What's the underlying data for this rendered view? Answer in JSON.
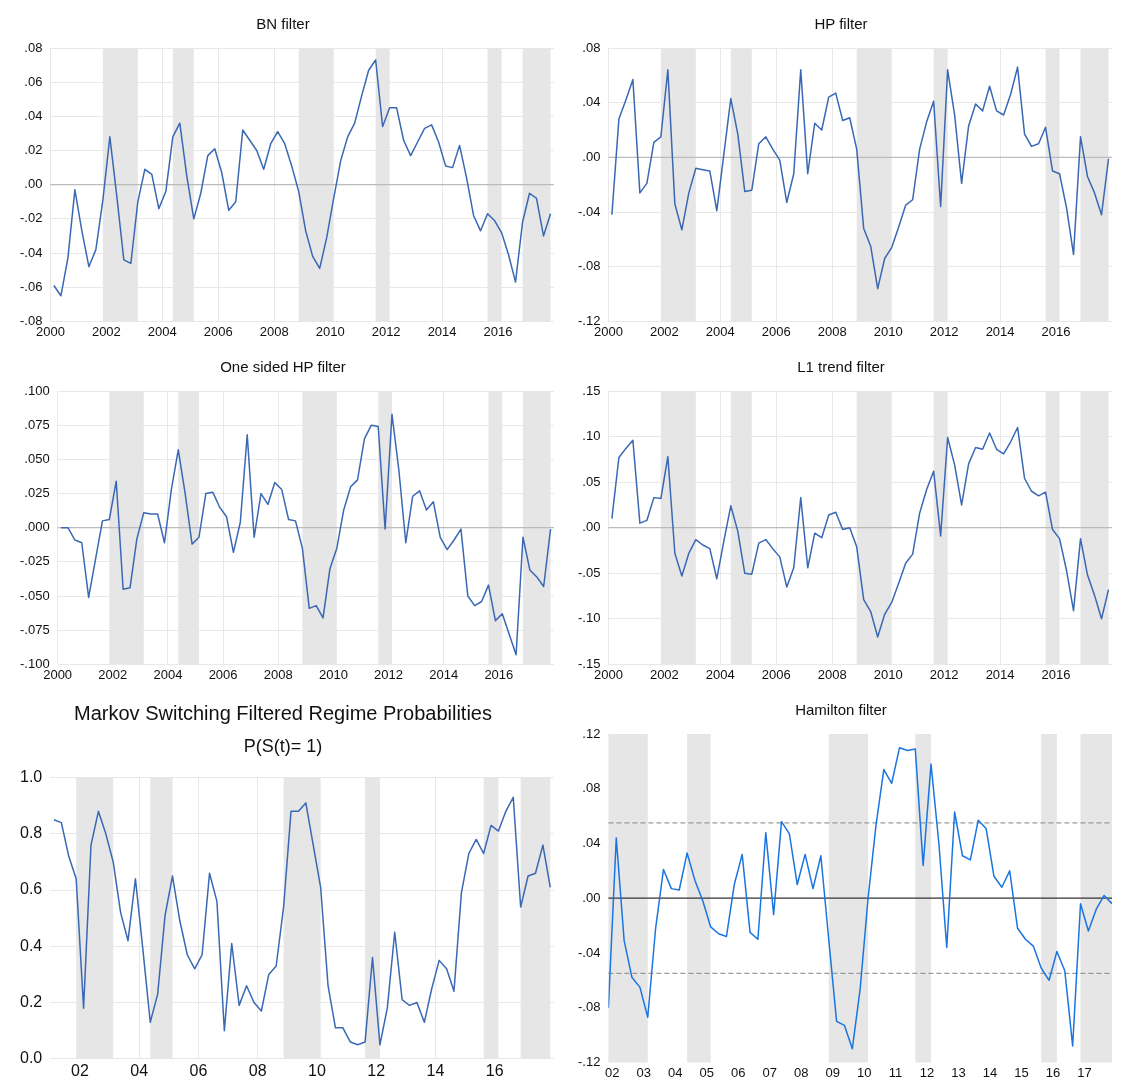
{
  "chart_data": [
    {
      "type": "line",
      "title": "BN filter",
      "x": [
        2000.125,
        2000.375,
        2000.625,
        2000.875,
        2001.125,
        2001.375,
        2001.625,
        2001.875,
        2002.125,
        2002.375,
        2002.625,
        2002.875,
        2003.125,
        2003.375,
        2003.625,
        2003.875,
        2004.125,
        2004.375,
        2004.625,
        2004.875,
        2005.125,
        2005.375,
        2005.625,
        2005.875,
        2006.125,
        2006.375,
        2006.625,
        2006.875,
        2007.125,
        2007.375,
        2007.625,
        2007.875,
        2008.125,
        2008.375,
        2008.625,
        2008.875,
        2009.125,
        2009.375,
        2009.625,
        2009.875,
        2010.125,
        2010.375,
        2010.625,
        2010.875,
        2011.125,
        2011.375,
        2011.625,
        2011.875,
        2012.125,
        2012.375,
        2012.625,
        2012.875,
        2013.125,
        2013.375,
        2013.625,
        2013.875,
        2014.125,
        2014.375,
        2014.625,
        2014.875,
        2015.125,
        2015.375,
        2015.625,
        2015.875,
        2016.125,
        2016.375,
        2016.625,
        2016.875,
        2017.125,
        2017.375,
        2017.625,
        2017.875
      ],
      "series": [
        {
          "color": "#3a68b4",
          "values": [
            -0.059,
            -0.065,
            -0.043,
            -0.003,
            -0.027,
            -0.048,
            -0.038,
            -0.009,
            0.028,
            -0.007,
            -0.044,
            -0.046,
            -0.01,
            0.009,
            0.006,
            -0.014,
            -0.004,
            0.028,
            0.036,
            0.005,
            -0.02,
            -0.005,
            0.017,
            0.021,
            0.007,
            -0.015,
            -0.01,
            0.032,
            0.026,
            0.02,
            0.009,
            0.024,
            0.031,
            0.024,
            0.011,
            -0.004,
            -0.027,
            -0.042,
            -0.049,
            -0.031,
            -0.008,
            0.014,
            0.028,
            0.036,
            0.052,
            0.067,
            0.073,
            0.034,
            0.045,
            0.045,
            0.026,
            0.017,
            0.025,
            0.033,
            0.035,
            0.025,
            0.011,
            0.01,
            0.023,
            0.004,
            -0.018,
            -0.027,
            -0.017,
            -0.021,
            -0.028,
            -0.041,
            -0.057,
            -0.022,
            -0.005,
            -0.008,
            -0.03,
            -0.017
          ]
        }
      ],
      "xlim": [
        2000,
        2018
      ],
      "xticks": [
        2000,
        2002,
        2004,
        2006,
        2008,
        2010,
        2012,
        2014,
        2016
      ],
      "ylim": [
        -0.08,
        0.08
      ],
      "yticks": [
        {
          "value": -0.08,
          "label": "-.08"
        },
        {
          "value": -0.06,
          "label": "-.06"
        },
        {
          "value": -0.04,
          "label": "-.04"
        },
        {
          "value": -0.02,
          "label": "-.02"
        },
        {
          "value": 0,
          "label": ".00"
        },
        {
          "value": 0.02,
          "label": ".02"
        },
        {
          "value": 0.04,
          "label": ".04"
        },
        {
          "value": 0.06,
          "label": ".06"
        },
        {
          "value": 0.08,
          "label": ".08"
        }
      ],
      "grid": true,
      "bands": [
        {
          "axis": "x",
          "from": 2001.875,
          "to": 2003.125
        },
        {
          "axis": "x",
          "from": 2004.375,
          "to": 2005.125
        },
        {
          "axis": "x",
          "from": 2008.875,
          "to": 2010.125
        },
        {
          "axis": "x",
          "from": 2011.625,
          "to": 2012.125
        },
        {
          "axis": "x",
          "from": 2015.625,
          "to": 2016.125
        },
        {
          "axis": "x",
          "from": 2016.875,
          "to": 2017.875
        }
      ],
      "ref_lines": [
        {
          "axis": "y",
          "value": 0,
          "color": "#bbbbbb"
        }
      ]
    },
    {
      "type": "line",
      "title": "HP filter",
      "x": [
        2000.125,
        2000.375,
        2000.625,
        2000.875,
        2001.125,
        2001.375,
        2001.625,
        2001.875,
        2002.125,
        2002.375,
        2002.625,
        2002.875,
        2003.125,
        2003.375,
        2003.625,
        2003.875,
        2004.125,
        2004.375,
        2004.625,
        2004.875,
        2005.125,
        2005.375,
        2005.625,
        2005.875,
        2006.125,
        2006.375,
        2006.625,
        2006.875,
        2007.125,
        2007.375,
        2007.625,
        2007.875,
        2008.125,
        2008.375,
        2008.625,
        2008.875,
        2009.125,
        2009.375,
        2009.625,
        2009.875,
        2010.125,
        2010.375,
        2010.625,
        2010.875,
        2011.125,
        2011.375,
        2011.625,
        2011.875,
        2012.125,
        2012.375,
        2012.625,
        2012.875,
        2013.125,
        2013.375,
        2013.625,
        2013.875,
        2014.125,
        2014.375,
        2014.625,
        2014.875,
        2015.125,
        2015.375,
        2015.625,
        2015.875,
        2016.125,
        2016.375,
        2016.625,
        2016.875,
        2017.125,
        2017.375,
        2017.625,
        2017.875
      ],
      "series": [
        {
          "color": "#3a68b4",
          "values": [
            -0.042,
            0.028,
            0.042,
            0.057,
            -0.026,
            -0.019,
            0.011,
            0.015,
            0.064,
            -0.034,
            -0.053,
            -0.026,
            -0.008,
            -0.009,
            -0.01,
            -0.039,
            0.002,
            0.043,
            0.017,
            -0.025,
            -0.024,
            0.01,
            0.015,
            0.006,
            -0.002,
            -0.033,
            -0.012,
            0.064,
            -0.012,
            0.025,
            0.02,
            0.044,
            0.047,
            0.027,
            0.029,
            0.006,
            -0.052,
            -0.065,
            -0.096,
            -0.074,
            -0.066,
            -0.051,
            -0.035,
            -0.031,
            0.006,
            0.026,
            0.041,
            -0.036,
            0.064,
            0.031,
            -0.019,
            0.023,
            0.039,
            0.034,
            0.052,
            0.034,
            0.031,
            0.046,
            0.066,
            0.017,
            0.008,
            0.01,
            0.022,
            -0.01,
            -0.012,
            -0.037,
            -0.071,
            0.015,
            -0.014,
            -0.026,
            -0.042,
            -0.001
          ]
        }
      ],
      "xlim": [
        2000,
        2018
      ],
      "xticks": [
        2000,
        2002,
        2004,
        2006,
        2008,
        2010,
        2012,
        2014,
        2016
      ],
      "ylim": [
        -0.12,
        0.08
      ],
      "yticks": [
        {
          "value": -0.12,
          "label": "-.12"
        },
        {
          "value": -0.08,
          "label": "-.08"
        },
        {
          "value": -0.04,
          "label": "-.04"
        },
        {
          "value": 0,
          "label": ".00"
        },
        {
          "value": 0.04,
          "label": ".04"
        },
        {
          "value": 0.08,
          "label": ".08"
        }
      ],
      "grid": true,
      "bands": [
        {
          "axis": "x",
          "from": 2001.875,
          "to": 2003.125
        },
        {
          "axis": "x",
          "from": 2004.375,
          "to": 2005.125
        },
        {
          "axis": "x",
          "from": 2008.875,
          "to": 2010.125
        },
        {
          "axis": "x",
          "from": 2011.625,
          "to": 2012.125
        },
        {
          "axis": "x",
          "from": 2015.625,
          "to": 2016.125
        },
        {
          "axis": "x",
          "from": 2016.875,
          "to": 2017.875
        }
      ],
      "ref_lines": [
        {
          "axis": "y",
          "value": 0,
          "color": "#bbbbbb"
        }
      ]
    },
    {
      "type": "line",
      "title": "One sided HP filter",
      "x": [
        2000.125,
        2000.375,
        2000.625,
        2000.875,
        2001.125,
        2001.375,
        2001.625,
        2001.875,
        2002.125,
        2002.375,
        2002.625,
        2002.875,
        2003.125,
        2003.375,
        2003.625,
        2003.875,
        2004.125,
        2004.375,
        2004.625,
        2004.875,
        2005.125,
        2005.375,
        2005.625,
        2005.875,
        2006.125,
        2006.375,
        2006.625,
        2006.875,
        2007.125,
        2007.375,
        2007.625,
        2007.875,
        2008.125,
        2008.375,
        2008.625,
        2008.875,
        2009.125,
        2009.375,
        2009.625,
        2009.875,
        2010.125,
        2010.375,
        2010.625,
        2010.875,
        2011.125,
        2011.375,
        2011.625,
        2011.875,
        2012.125,
        2012.375,
        2012.625,
        2012.875,
        2013.125,
        2013.375,
        2013.625,
        2013.875,
        2014.125,
        2014.375,
        2014.625,
        2014.875,
        2015.125,
        2015.375,
        2015.625,
        2015.875,
        2016.125,
        2016.375,
        2016.625,
        2016.875,
        2017.125,
        2017.375,
        2017.625,
        2017.875
      ],
      "series": [
        {
          "color": "#3a68b4",
          "values": [
            0.0,
            0.0,
            -0.009,
            -0.011,
            -0.051,
            -0.023,
            0.005,
            0.006,
            0.034,
            -0.045,
            -0.044,
            -0.008,
            0.011,
            0.01,
            0.01,
            -0.011,
            0.028,
            0.057,
            0.025,
            -0.012,
            -0.007,
            0.025,
            0.026,
            0.015,
            0.008,
            -0.018,
            0.004,
            0.068,
            -0.007,
            0.025,
            0.017,
            0.033,
            0.028,
            0.006,
            0.005,
            -0.015,
            -0.059,
            -0.057,
            -0.066,
            -0.03,
            -0.015,
            0.013,
            0.03,
            0.035,
            0.065,
            0.075,
            0.074,
            -0.001,
            0.083,
            0.042,
            -0.011,
            0.023,
            0.027,
            0.013,
            0.019,
            -0.007,
            -0.016,
            -0.009,
            -0.001,
            -0.05,
            -0.057,
            -0.054,
            -0.042,
            -0.068,
            -0.063,
            -0.078,
            -0.093,
            -0.007,
            -0.031,
            -0.036,
            -0.043,
            -0.001
          ]
        }
      ],
      "xlim": [
        2000,
        2018
      ],
      "xticks": [
        2000,
        2002,
        2004,
        2006,
        2008,
        2010,
        2012,
        2014,
        2016
      ],
      "ylim": [
        -0.1,
        0.1
      ],
      "yticks": [
        {
          "value": -0.1,
          "label": "-.100"
        },
        {
          "value": -0.075,
          "label": "-.075"
        },
        {
          "value": -0.05,
          "label": "-.050"
        },
        {
          "value": -0.025,
          "label": "-.025"
        },
        {
          "value": 0,
          "label": ".000"
        },
        {
          "value": 0.025,
          "label": ".025"
        },
        {
          "value": 0.05,
          "label": ".050"
        },
        {
          "value": 0.075,
          "label": ".075"
        },
        {
          "value": 0.1,
          "label": ".100"
        }
      ],
      "grid": true,
      "bands": [
        {
          "axis": "x",
          "from": 2001.875,
          "to": 2003.125
        },
        {
          "axis": "x",
          "from": 2004.375,
          "to": 2005.125
        },
        {
          "axis": "x",
          "from": 2008.875,
          "to": 2010.125
        },
        {
          "axis": "x",
          "from": 2011.625,
          "to": 2012.125
        },
        {
          "axis": "x",
          "from": 2015.625,
          "to": 2016.125
        },
        {
          "axis": "x",
          "from": 2016.875,
          "to": 2017.875
        }
      ],
      "ref_lines": [
        {
          "axis": "y",
          "value": 0,
          "color": "#bbbbbb"
        }
      ]
    },
    {
      "type": "line",
      "title": "L1 trend filter",
      "x": [
        2000.125,
        2000.375,
        2000.625,
        2000.875,
        2001.125,
        2001.375,
        2001.625,
        2001.875,
        2002.125,
        2002.375,
        2002.625,
        2002.875,
        2003.125,
        2003.375,
        2003.625,
        2003.875,
        2004.125,
        2004.375,
        2004.625,
        2004.875,
        2005.125,
        2005.375,
        2005.625,
        2005.875,
        2006.125,
        2006.375,
        2006.625,
        2006.875,
        2007.125,
        2007.375,
        2007.625,
        2007.875,
        2008.125,
        2008.375,
        2008.625,
        2008.875,
        2009.125,
        2009.375,
        2009.625,
        2009.875,
        2010.125,
        2010.375,
        2010.625,
        2010.875,
        2011.125,
        2011.375,
        2011.625,
        2011.875,
        2012.125,
        2012.375,
        2012.625,
        2012.875,
        2013.125,
        2013.375,
        2013.625,
        2013.875,
        2014.125,
        2014.375,
        2014.625,
        2014.875,
        2015.125,
        2015.375,
        2015.625,
        2015.875,
        2016.125,
        2016.375,
        2016.625,
        2016.875,
        2017.125,
        2017.375,
        2017.625,
        2017.875
      ],
      "series": [
        {
          "color": "#3a68b4",
          "values": [
            0.01,
            0.077,
            0.087,
            0.096,
            0.005,
            0.008,
            0.033,
            0.032,
            0.078,
            -0.028,
            -0.053,
            -0.028,
            -0.013,
            -0.019,
            -0.023,
            -0.056,
            -0.015,
            0.024,
            -0.004,
            -0.05,
            -0.051,
            -0.017,
            -0.013,
            -0.023,
            -0.032,
            -0.065,
            -0.044,
            0.033,
            -0.044,
            -0.006,
            -0.011,
            0.014,
            0.017,
            -0.002,
            0.0,
            -0.021,
            -0.079,
            -0.092,
            -0.12,
            -0.095,
            -0.082,
            -0.061,
            -0.039,
            -0.029,
            0.016,
            0.042,
            0.062,
            -0.009,
            0.099,
            0.069,
            0.025,
            0.07,
            0.088,
            0.086,
            0.104,
            0.086,
            0.081,
            0.094,
            0.11,
            0.054,
            0.04,
            0.035,
            0.039,
            -0.002,
            -0.012,
            -0.047,
            -0.091,
            -0.012,
            -0.052,
            -0.074,
            -0.1,
            -0.068
          ]
        }
      ],
      "xlim": [
        2000,
        2018
      ],
      "xticks": [
        2000,
        2002,
        2004,
        2006,
        2008,
        2010,
        2012,
        2014,
        2016
      ],
      "ylim": [
        -0.15,
        0.15
      ],
      "yticks": [
        {
          "value": -0.15,
          "label": "-.15"
        },
        {
          "value": -0.1,
          "label": "-.10"
        },
        {
          "value": -0.05,
          "label": "-.05"
        },
        {
          "value": 0,
          "label": ".00"
        },
        {
          "value": 0.05,
          "label": ".05"
        },
        {
          "value": 0.1,
          "label": ".10"
        },
        {
          "value": 0.15,
          "label": ".15"
        }
      ],
      "grid": true,
      "bands": [
        {
          "axis": "x",
          "from": 2001.875,
          "to": 2003.125
        },
        {
          "axis": "x",
          "from": 2004.375,
          "to": 2005.125
        },
        {
          "axis": "x",
          "from": 2008.875,
          "to": 2010.125
        },
        {
          "axis": "x",
          "from": 2011.625,
          "to": 2012.125
        },
        {
          "axis": "x",
          "from": 2015.625,
          "to": 2016.125
        },
        {
          "axis": "x",
          "from": 2016.875,
          "to": 2017.875
        }
      ],
      "ref_lines": [
        {
          "axis": "y",
          "value": 0,
          "color": "#bbbbbb"
        }
      ]
    },
    {
      "type": "line",
      "title": "Markov Switching Filtered Regime Probabilities",
      "subtitle": "P(S(t)= 1)",
      "x": [
        2001.125,
        2001.375,
        2001.625,
        2001.875,
        2002.125,
        2002.375,
        2002.625,
        2002.875,
        2003.125,
        2003.375,
        2003.625,
        2003.875,
        2004.125,
        2004.375,
        2004.625,
        2004.875,
        2005.125,
        2005.375,
        2005.625,
        2005.875,
        2006.125,
        2006.375,
        2006.625,
        2006.875,
        2007.125,
        2007.375,
        2007.625,
        2007.875,
        2008.125,
        2008.375,
        2008.625,
        2008.875,
        2009.125,
        2009.375,
        2009.625,
        2009.875,
        2010.125,
        2010.375,
        2010.625,
        2010.875,
        2011.125,
        2011.375,
        2011.625,
        2011.875,
        2012.125,
        2012.375,
        2012.625,
        2012.875,
        2013.125,
        2013.375,
        2013.625,
        2013.875,
        2014.125,
        2014.375,
        2014.625,
        2014.875,
        2015.125,
        2015.375,
        2015.625,
        2015.875,
        2016.125,
        2016.375,
        2016.625,
        2016.875,
        2017.125,
        2017.375,
        2017.625,
        2017.875
      ],
      "series": [
        {
          "color": "#3a68b4",
          "values": [
            0.85,
            0.84,
            0.72,
            0.64,
            0.18,
            0.76,
            0.88,
            0.8,
            0.7,
            0.52,
            0.42,
            0.64,
            0.39,
            0.13,
            0.23,
            0.51,
            0.65,
            0.49,
            0.37,
            0.32,
            0.37,
            0.66,
            0.56,
            0.1,
            0.41,
            0.19,
            0.26,
            0.2,
            0.17,
            0.3,
            0.33,
            0.54,
            0.88,
            0.88,
            0.91,
            0.76,
            0.61,
            0.26,
            0.11,
            0.11,
            0.06,
            0.05,
            0.06,
            0.36,
            0.05,
            0.18,
            0.45,
            0.21,
            0.19,
            0.2,
            0.13,
            0.25,
            0.35,
            0.32,
            0.24,
            0.59,
            0.73,
            0.78,
            0.73,
            0.83,
            0.81,
            0.88,
            0.93,
            0.54,
            0.65,
            0.66,
            0.76,
            0.61
          ]
        }
      ],
      "xlim": [
        2001,
        2018
      ],
      "xticks": [
        {
          "value": 2002,
          "label": "02"
        },
        {
          "value": 2004,
          "label": "04"
        },
        {
          "value": 2006,
          "label": "06"
        },
        {
          "value": 2008,
          "label": "08"
        },
        {
          "value": 2010,
          "label": "10"
        },
        {
          "value": 2012,
          "label": "12"
        },
        {
          "value": 2014,
          "label": "14"
        },
        {
          "value": 2016,
          "label": "16"
        }
      ],
      "ylim": [
        0,
        1
      ],
      "yticks": [
        {
          "value": 0,
          "label": "0.0"
        },
        0.2,
        0.4,
        0.6,
        0.8,
        {
          "value": 1,
          "label": "1.0"
        }
      ],
      "grid": true,
      "bands": [
        {
          "axis": "x",
          "from": 2001.875,
          "to": 2003.125
        },
        {
          "axis": "x",
          "from": 2004.375,
          "to": 2005.125
        },
        {
          "axis": "x",
          "from": 2008.875,
          "to": 2010.125
        },
        {
          "axis": "x",
          "from": 2011.625,
          "to": 2012.125
        },
        {
          "axis": "x",
          "from": 2015.625,
          "to": 2016.125
        },
        {
          "axis": "x",
          "from": 2016.875,
          "to": 2017.875
        }
      ]
    },
    {
      "type": "line",
      "title": "Hamilton filter",
      "x": [
        2001.875,
        2002.125,
        2002.375,
        2002.625,
        2002.875,
        2003.125,
        2003.375,
        2003.625,
        2003.875,
        2004.125,
        2004.375,
        2004.625,
        2004.875,
        2005.125,
        2005.375,
        2005.625,
        2005.875,
        2006.125,
        2006.375,
        2006.625,
        2006.875,
        2007.125,
        2007.375,
        2007.625,
        2007.875,
        2008.125,
        2008.375,
        2008.625,
        2008.875,
        2009.125,
        2009.375,
        2009.625,
        2009.875,
        2010.125,
        2010.375,
        2010.625,
        2010.875,
        2011.125,
        2011.375,
        2011.625,
        2011.875,
        2012.125,
        2012.375,
        2012.625,
        2012.875,
        2013.125,
        2013.375,
        2013.625,
        2013.875,
        2014.125,
        2014.375,
        2014.625,
        2014.875,
        2015.125,
        2015.375,
        2015.625,
        2015.875,
        2016.125,
        2016.375,
        2016.625,
        2016.875,
        2017.125,
        2017.375,
        2017.625,
        2017.875
      ],
      "series": [
        {
          "color": "#1a75e0",
          "values": [
            -0.08,
            0.044,
            -0.031,
            -0.058,
            -0.065,
            -0.087,
            -0.022,
            0.021,
            0.007,
            0.006,
            0.033,
            0.013,
            -0.002,
            -0.021,
            -0.026,
            -0.028,
            0.01,
            0.032,
            -0.025,
            -0.03,
            0.048,
            -0.012,
            0.056,
            0.047,
            0.01,
            0.032,
            0.007,
            0.031,
            -0.03,
            -0.09,
            -0.093,
            -0.11,
            -0.066,
            0.0,
            0.053,
            0.094,
            0.084,
            0.11,
            0.108,
            0.109,
            0.024,
            0.098,
            0.04,
            -0.036,
            0.063,
            0.031,
            0.028,
            0.057,
            0.051,
            0.016,
            0.008,
            0.02,
            -0.022,
            -0.03,
            -0.035,
            -0.051,
            -0.06,
            -0.039,
            -0.053,
            -0.108,
            -0.004,
            -0.024,
            -0.008,
            0.002,
            -0.004
          ]
        }
      ],
      "xlim": [
        2001.875,
        2017.875
      ],
      "xticks": [
        {
          "value": 2002,
          "label": "02"
        },
        {
          "value": 2003,
          "label": "03"
        },
        {
          "value": 2004,
          "label": "04"
        },
        {
          "value": 2005,
          "label": "05"
        },
        {
          "value": 2006,
          "label": "06"
        },
        {
          "value": 2007,
          "label": "07"
        },
        {
          "value": 2008,
          "label": "08"
        },
        {
          "value": 2009,
          "label": "09"
        },
        {
          "value": 2010,
          "label": "10"
        },
        {
          "value": 2011,
          "label": "11"
        },
        {
          "value": 2012,
          "label": "12"
        },
        {
          "value": 2013,
          "label": "13"
        },
        {
          "value": 2014,
          "label": "14"
        },
        {
          "value": 2015,
          "label": "15"
        },
        {
          "value": 2016,
          "label": "16"
        },
        {
          "value": 2017,
          "label": "17"
        }
      ],
      "ylim": [
        -0.12,
        0.12
      ],
      "yticks": [
        {
          "value": -0.12,
          "label": "-.12"
        },
        {
          "value": -0.08,
          "label": "-.08"
        },
        {
          "value": -0.04,
          "label": "-.04"
        },
        {
          "value": 0,
          "label": ".00"
        },
        {
          "value": 0.04,
          "label": ".04"
        },
        {
          "value": 0.08,
          "label": ".08"
        },
        {
          "value": 0.12,
          "label": ".12"
        }
      ],
      "bands": [
        {
          "axis": "x",
          "from": 2001.875,
          "to": 2003.125
        },
        {
          "axis": "x",
          "from": 2004.375,
          "to": 2005.125
        },
        {
          "axis": "x",
          "from": 2008.875,
          "to": 2010.125
        },
        {
          "axis": "x",
          "from": 2011.625,
          "to": 2012.125
        },
        {
          "axis": "x",
          "from": 2015.625,
          "to": 2016.125
        },
        {
          "axis": "x",
          "from": 2016.875,
          "to": 2017.875
        }
      ],
      "ref_lines": [
        {
          "axis": "y",
          "value": 0,
          "color": "#333333"
        },
        {
          "axis": "y",
          "value": 0.055,
          "color": "#999999",
          "line_style": "dashed"
        },
        {
          "axis": "y",
          "value": -0.055,
          "color": "#999999",
          "line_style": "dashed"
        }
      ]
    }
  ]
}
